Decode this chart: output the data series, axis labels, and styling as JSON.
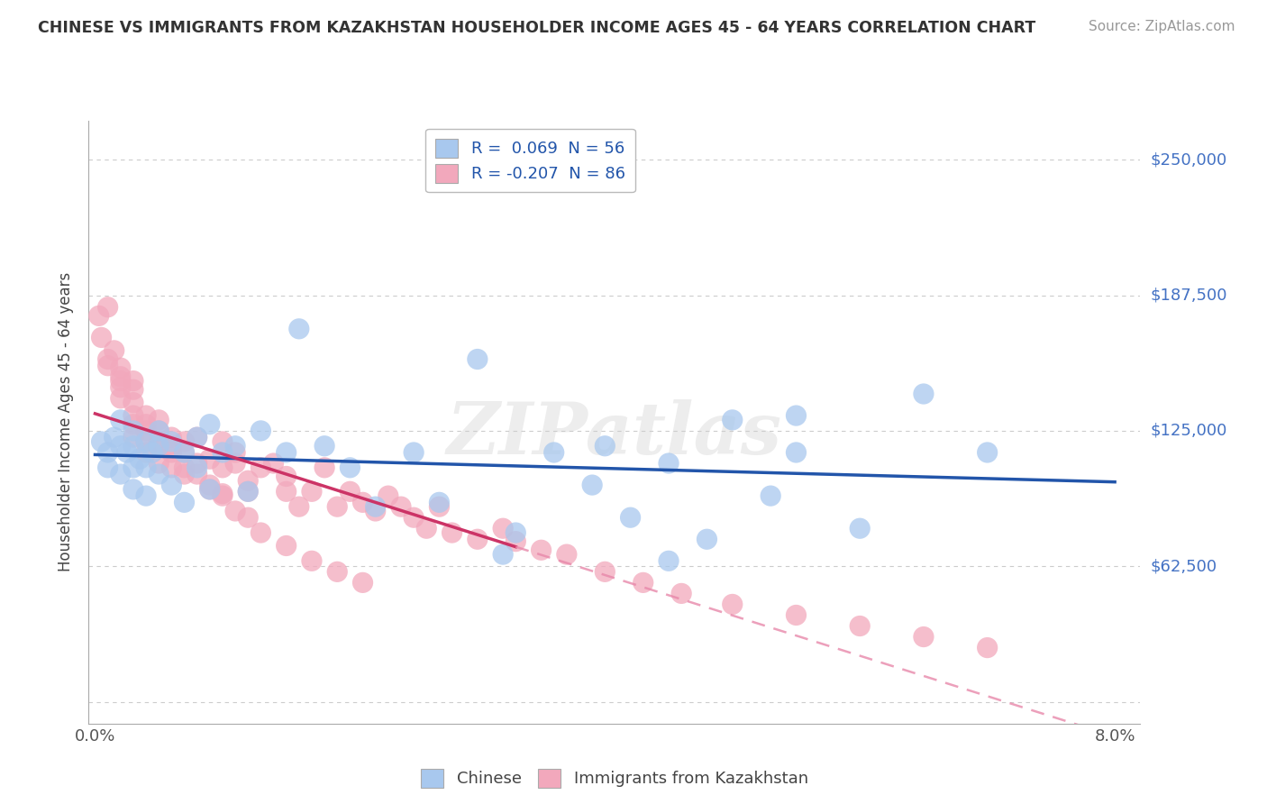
{
  "title": "CHINESE VS IMMIGRANTS FROM KAZAKHSTAN HOUSEHOLDER INCOME AGES 45 - 64 YEARS CORRELATION CHART",
  "source": "Source: ZipAtlas.com",
  "ylabel": "Householder Income Ages 45 - 64 years",
  "y_ticks": [
    0,
    62500,
    125000,
    187500,
    250000
  ],
  "y_tick_labels": [
    "",
    "$62,500",
    "$125,000",
    "$187,500",
    "$250,000"
  ],
  "xlim": [
    -0.0005,
    0.082
  ],
  "ylim": [
    -10000,
    268000
  ],
  "legend_entry1": "R =  0.069  N = 56",
  "legend_entry2": "R = -0.207  N = 86",
  "legend_label1": "Chinese",
  "legend_label2": "Immigrants from Kazakhstan",
  "blue_color": "#A8C8EE",
  "pink_color": "#F2A8BC",
  "blue_line_color": "#2255AA",
  "pink_line_color": "#CC3366",
  "pink_dash_color": "#E888AA",
  "watermark": "ZIPatlas",
  "chinese_x": [
    0.0005,
    0.001,
    0.001,
    0.0015,
    0.002,
    0.002,
    0.002,
    0.0025,
    0.003,
    0.003,
    0.003,
    0.003,
    0.0035,
    0.004,
    0.004,
    0.004,
    0.0045,
    0.005,
    0.005,
    0.005,
    0.006,
    0.006,
    0.007,
    0.007,
    0.008,
    0.008,
    0.009,
    0.009,
    0.01,
    0.011,
    0.012,
    0.013,
    0.015,
    0.016,
    0.018,
    0.02,
    0.022,
    0.025,
    0.027,
    0.03,
    0.033,
    0.036,
    0.039,
    0.04,
    0.042,
    0.045,
    0.048,
    0.05,
    0.053,
    0.055,
    0.032,
    0.06,
    0.065,
    0.07,
    0.045,
    0.055
  ],
  "chinese_y": [
    120000,
    115000,
    108000,
    122000,
    118000,
    105000,
    130000,
    115000,
    108000,
    125000,
    98000,
    118000,
    112000,
    120000,
    108000,
    95000,
    115000,
    118000,
    105000,
    125000,
    100000,
    120000,
    115000,
    92000,
    108000,
    122000,
    128000,
    98000,
    115000,
    118000,
    97000,
    125000,
    115000,
    172000,
    118000,
    108000,
    90000,
    115000,
    92000,
    158000,
    78000,
    115000,
    100000,
    118000,
    85000,
    110000,
    75000,
    130000,
    95000,
    115000,
    68000,
    80000,
    142000,
    115000,
    65000,
    132000
  ],
  "kaz_x": [
    0.0003,
    0.0005,
    0.001,
    0.001,
    0.0015,
    0.002,
    0.002,
    0.002,
    0.002,
    0.003,
    0.003,
    0.003,
    0.003,
    0.003,
    0.004,
    0.004,
    0.004,
    0.004,
    0.005,
    0.005,
    0.005,
    0.005,
    0.006,
    0.006,
    0.006,
    0.007,
    0.007,
    0.007,
    0.008,
    0.008,
    0.009,
    0.009,
    0.01,
    0.01,
    0.01,
    0.011,
    0.011,
    0.012,
    0.012,
    0.013,
    0.014,
    0.015,
    0.015,
    0.016,
    0.017,
    0.018,
    0.019,
    0.02,
    0.021,
    0.022,
    0.023,
    0.024,
    0.025,
    0.026,
    0.027,
    0.028,
    0.03,
    0.032,
    0.033,
    0.035,
    0.037,
    0.04,
    0.043,
    0.046,
    0.05,
    0.055,
    0.06,
    0.065,
    0.07,
    0.001,
    0.002,
    0.003,
    0.004,
    0.005,
    0.006,
    0.007,
    0.008,
    0.009,
    0.01,
    0.011,
    0.012,
    0.013,
    0.015,
    0.017,
    0.019,
    0.021
  ],
  "kaz_y": [
    178000,
    168000,
    158000,
    182000,
    162000,
    150000,
    140000,
    154000,
    145000,
    144000,
    132000,
    122000,
    138000,
    148000,
    128000,
    120000,
    115000,
    132000,
    120000,
    110000,
    125000,
    130000,
    118000,
    108000,
    122000,
    115000,
    105000,
    120000,
    110000,
    122000,
    112000,
    100000,
    108000,
    120000,
    96000,
    110000,
    115000,
    102000,
    97000,
    108000,
    110000,
    97000,
    104000,
    90000,
    97000,
    108000,
    90000,
    97000,
    92000,
    88000,
    95000,
    90000,
    85000,
    80000,
    90000,
    78000,
    75000,
    80000,
    74000,
    70000,
    68000,
    60000,
    55000,
    50000,
    45000,
    40000,
    35000,
    30000,
    25000,
    155000,
    148000,
    128000,
    125000,
    118000,
    115000,
    108000,
    105000,
    98000,
    95000,
    88000,
    85000,
    78000,
    72000,
    65000,
    60000,
    55000
  ]
}
